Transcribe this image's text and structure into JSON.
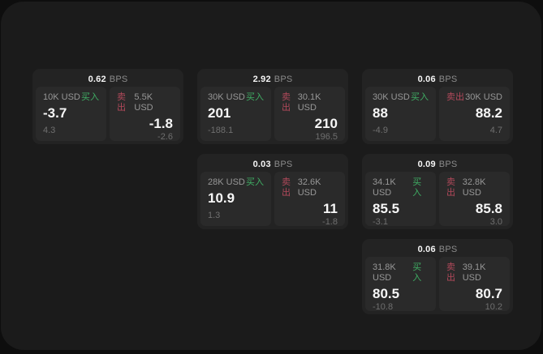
{
  "labels": {
    "bps_suffix": "BPS",
    "buy": "买入",
    "sell": "卖出"
  },
  "colors": {
    "buy_green": "#3fae64",
    "sell_red": "#b2495b",
    "surface": "#1b1b1b",
    "card": "#232323",
    "panel": "#2a2a2a"
  },
  "cards": [
    {
      "bps": "0.62",
      "buy": {
        "amount": "10K USD",
        "price": "-3.7",
        "delta": "4.3"
      },
      "sell": {
        "amount": "5.5K USD",
        "price": "-1.8",
        "delta": "-2.6"
      }
    },
    {
      "bps": "2.92",
      "buy": {
        "amount": "30K USD",
        "price": "201",
        "delta": "-188.1"
      },
      "sell": {
        "amount": "30.1K USD",
        "price": "210",
        "delta": "196.5"
      }
    },
    {
      "bps": "0.06",
      "buy": {
        "amount": "30K USD",
        "price": "88",
        "delta": "-4.9"
      },
      "sell": {
        "amount": "30K USD",
        "price": "88.2",
        "delta": "4.7"
      }
    },
    {
      "bps": "0.03",
      "buy": {
        "amount": "28K USD",
        "price": "10.9",
        "delta": "1.3"
      },
      "sell": {
        "amount": "32.6K USD",
        "price": "11",
        "delta": "-1.8"
      }
    },
    {
      "bps": "0.09",
      "buy": {
        "amount": "34.1K USD",
        "price": "85.5",
        "delta": "-3.1"
      },
      "sell": {
        "amount": "32.8K USD",
        "price": "85.8",
        "delta": "3.0"
      }
    },
    {
      "bps": "0.06",
      "buy": {
        "amount": "31.8K USD",
        "price": "80.5",
        "delta": "-10.8"
      },
      "sell": {
        "amount": "39.1K USD",
        "price": "80.7",
        "delta": "10.2"
      }
    }
  ]
}
